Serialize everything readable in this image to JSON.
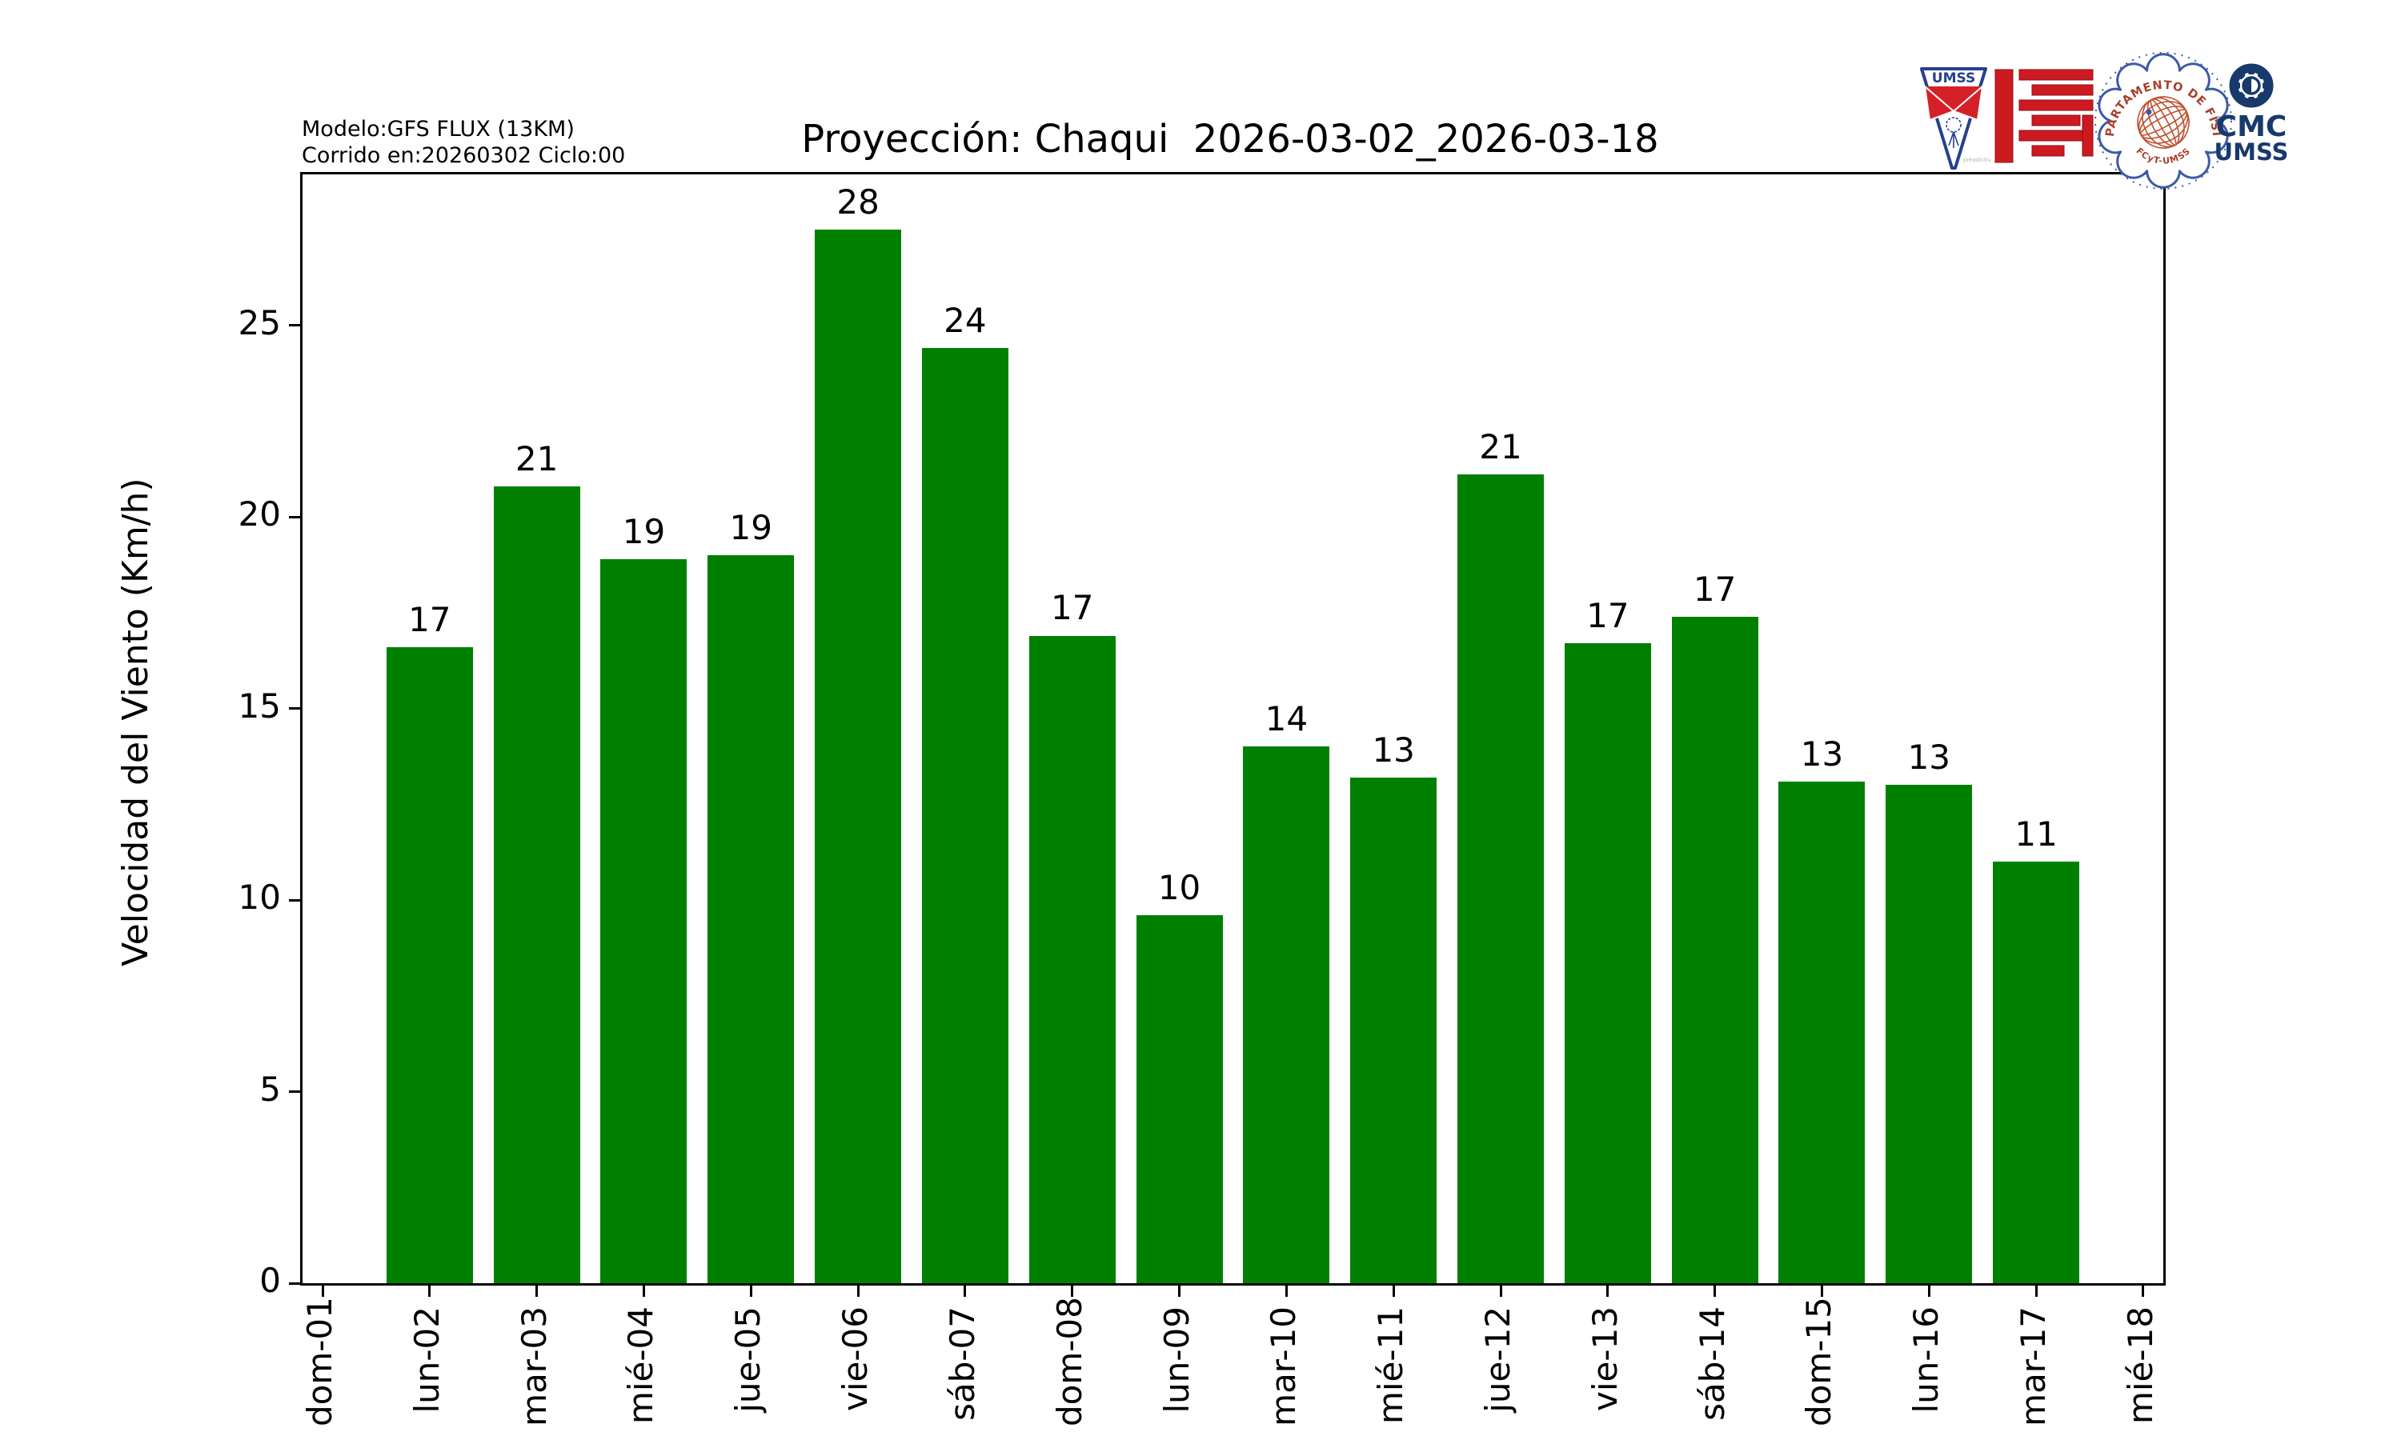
{
  "header": {
    "model_line1": "Modelo:GFS FLUX (13KM)",
    "model_line2": "Corrido en:20260302 Ciclo:00",
    "title": "Proyección: Chaqui  2026-03-02_2026-03-18"
  },
  "chart_data": {
    "type": "bar",
    "title": "Proyección: Chaqui  2026-03-02_2026-03-18",
    "xlabel": "",
    "ylabel": "Velocidad del Viento (Km/h)",
    "categories": [
      "dom-01",
      "lun-02",
      "mar-03",
      "mié-04",
      "jue-05",
      "vie-06",
      "sáb-07",
      "dom-08",
      "lun-09",
      "mar-10",
      "mié-11",
      "jue-12",
      "vie-13",
      "sáb-14",
      "dom-15",
      "lun-16",
      "mar-17",
      "mié-18"
    ],
    "values": [
      null,
      16.6,
      20.8,
      18.9,
      19.0,
      27.5,
      24.4,
      16.9,
      9.6,
      14.0,
      13.2,
      21.1,
      16.7,
      17.4,
      13.1,
      13.0,
      11.0,
      null
    ],
    "bar_labels": [
      null,
      "17",
      "21",
      "19",
      "19",
      "28",
      "24",
      "17",
      "10",
      "14",
      "13",
      "21",
      "17",
      "17",
      "13",
      "13",
      "11",
      null
    ],
    "bar_color": "#008000",
    "yticks": [
      0,
      5,
      10,
      15,
      20,
      25
    ],
    "ylim": [
      0,
      28.9
    ],
    "grid": false,
    "legend": null
  },
  "logos": {
    "pennant_text": "UMSS",
    "pennant_watermark": "preadictivo.com",
    "seal_text_top": "DEPARTAMENTO DE FÍSICA",
    "seal_text_bottom": "FCyT-UMSS",
    "cmc_line1": "CMC",
    "cmc_line2": "UMSS",
    "colors": {
      "pennant_blue": "#27408e",
      "pennant_red": "#d62027",
      "fcyt_red": "#cc1a20",
      "seal_orange": "#c0502f",
      "seal_text": "#a8402c",
      "seal_dotted_blue": "#3d5aa8",
      "cmc_navy": "#17396b"
    }
  }
}
